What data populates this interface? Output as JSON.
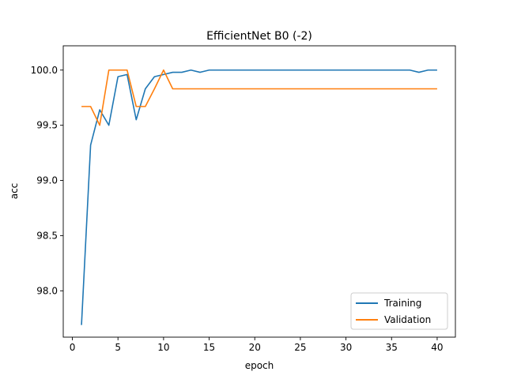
{
  "chart_data": {
    "type": "line",
    "title": "EfficientNet B0 (-2)",
    "xlabel": "epoch",
    "ylabel": "acc",
    "xlim": [
      -1,
      42
    ],
    "ylim": [
      97.58,
      100.22
    ],
    "xticks": [
      0,
      5,
      10,
      15,
      20,
      25,
      30,
      35,
      40
    ],
    "yticks": [
      98.0,
      98.5,
      99.0,
      99.5,
      100.0
    ],
    "grid": false,
    "legend_position": "lower-right",
    "x": [
      1,
      2,
      3,
      4,
      5,
      6,
      7,
      8,
      9,
      10,
      11,
      12,
      13,
      14,
      15,
      16,
      17,
      18,
      19,
      20,
      21,
      22,
      23,
      24,
      25,
      26,
      27,
      28,
      29,
      30,
      31,
      32,
      33,
      34,
      35,
      36,
      37,
      38,
      39,
      40
    ],
    "series": [
      {
        "name": "Training",
        "color": "#1f77b4",
        "values": [
          97.69,
          99.32,
          99.64,
          99.5,
          99.94,
          99.96,
          99.55,
          99.83,
          99.94,
          99.96,
          99.98,
          99.98,
          100.0,
          99.98,
          100.0,
          100.0,
          100.0,
          100.0,
          100.0,
          100.0,
          100.0,
          100.0,
          100.0,
          100.0,
          100.0,
          100.0,
          100.0,
          100.0,
          100.0,
          100.0,
          100.0,
          100.0,
          100.0,
          100.0,
          100.0,
          100.0,
          100.0,
          99.98,
          100.0,
          100.0
        ]
      },
      {
        "name": "Validation",
        "color": "#ff7f0e",
        "values": [
          99.67,
          99.67,
          99.5,
          100.0,
          100.0,
          100.0,
          99.67,
          99.67,
          99.83,
          100.0,
          99.83,
          99.83,
          99.83,
          99.83,
          99.83,
          99.83,
          99.83,
          99.83,
          99.83,
          99.83,
          99.83,
          99.83,
          99.83,
          99.83,
          99.83,
          99.83,
          99.83,
          99.83,
          99.83,
          99.83,
          99.83,
          99.83,
          99.83,
          99.83,
          99.83,
          99.83,
          99.83,
          99.83,
          99.83,
          99.83
        ]
      }
    ]
  }
}
